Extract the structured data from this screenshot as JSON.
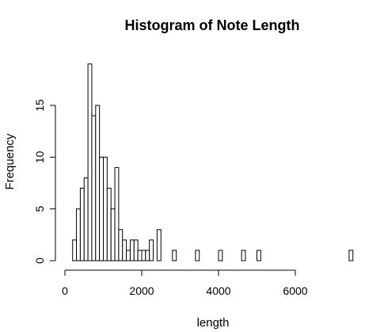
{
  "chart_data": {
    "type": "bar",
    "title": "Histogram of Note Length",
    "xlabel": "length",
    "ylabel": "Frequency",
    "bin_width": 100,
    "xlim": [
      0,
      7500
    ],
    "ylim": [
      0,
      19
    ],
    "x_ticks": [
      0,
      2000,
      4000,
      6000
    ],
    "y_ticks": [
      0,
      5,
      10,
      15
    ],
    "bins_start": [
      200,
      300,
      400,
      500,
      600,
      700,
      800,
      900,
      1000,
      1100,
      1200,
      1300,
      1400,
      1500,
      1600,
      1700,
      1800,
      1900,
      2000,
      2100,
      2200,
      2300,
      2400,
      2500,
      2600,
      2700,
      2800,
      2900,
      3000,
      3100,
      3200,
      3300,
      3400,
      3500,
      3600,
      3700,
      3800,
      3900,
      4000,
      4100,
      4200,
      4300,
      4400,
      4500,
      4600,
      4700,
      4800,
      4900,
      5000,
      5100,
      5200,
      5300,
      5400,
      5500,
      5600,
      5700,
      5800,
      5900,
      6000,
      6100,
      6200,
      6300,
      6400,
      6500,
      6600,
      6700,
      6800,
      6900,
      7000,
      7100,
      7200,
      7300,
      7400
    ],
    "values": [
      2,
      5,
      7,
      8,
      19,
      14,
      15,
      10,
      10,
      7,
      5,
      9,
      3,
      2,
      1,
      2,
      2,
      1,
      1,
      1,
      2,
      0,
      3,
      0,
      0,
      0,
      1,
      0,
      0,
      0,
      0,
      0,
      1,
      0,
      0,
      0,
      0,
      0,
      1,
      0,
      0,
      0,
      0,
      0,
      1,
      0,
      0,
      0,
      1,
      0,
      0,
      0,
      0,
      0,
      0,
      0,
      0,
      0,
      0,
      0,
      0,
      0,
      0,
      0,
      0,
      0,
      0,
      0,
      0,
      0,
      0,
      0,
      1
    ]
  }
}
